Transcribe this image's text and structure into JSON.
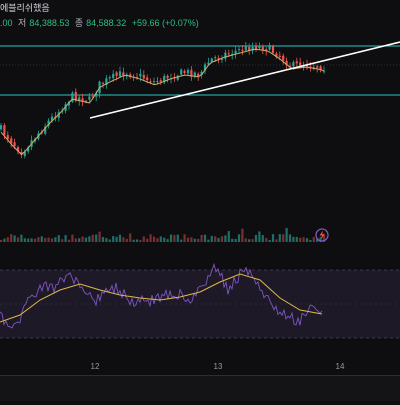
{
  "header": {
    "title_fragment": "에블리쉬했음",
    "open_tail": ".00",
    "low_label": "저",
    "low_value": "84,388.53",
    "close_label": "종",
    "close_value": "84,588.32",
    "change": "+59.66 (+0.07%)"
  },
  "colors": {
    "background": "#0e0e10",
    "up_candle": "#26a69a",
    "down_candle": "#ef5350",
    "ma_line": "#c9b26a",
    "trendline": "#ffffff",
    "channel_line": "#2ec4c4",
    "rsi_line": "#7e57c2",
    "rsi_signal": "#e0b84a",
    "rsi_band": "#2a2238"
  },
  "time_axis": {
    "labels": [
      "12",
      "13",
      "14"
    ]
  },
  "icons": {
    "goto_realtime": "lightning-circle-icon"
  },
  "chart_data": {
    "type": "candlestick",
    "panes": [
      "price",
      "volume",
      "rsi"
    ],
    "price_overlays": [
      "moving-average",
      "ascending-trendline",
      "horizontal-channel-lines"
    ],
    "last_close": 84588.32,
    "x_ticks": [
      "12",
      "13",
      "14"
    ]
  }
}
